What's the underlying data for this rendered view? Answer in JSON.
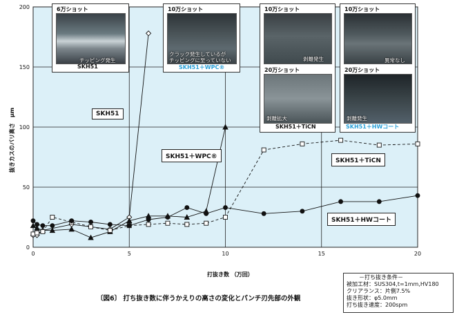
{
  "figure_caption": "〔図6〕 打ち抜き数に伴うかえりの高さの変化とパンチ刃先部の外観",
  "conditions": {
    "title": "－打ち抜き条件－",
    "lines": [
      "被加工材：SUS304,t=1mm,HV180",
      "クリアランス：片側7.5%",
      "抜き形状：φ5.0mm",
      "打ち抜き速度：200spm"
    ]
  },
  "colors": {
    "plot_bg": "#dcf0f8",
    "grid": "#222222",
    "accent_blue": "#2aa0d8"
  },
  "photos": [
    {
      "caption": "6万ショット",
      "note": "チッピング発生",
      "name": "SKH51",
      "name_color": "#111111"
    },
    {
      "caption": "10万ショット",
      "note": "クラック発生しているが\nチッピングに至っていない",
      "name": "SKH51＋WPC®",
      "name_color": "#2aa0d8"
    },
    {
      "caption": "10万ショット",
      "note": "剥離発生",
      "caption2": "20万ショット",
      "note2": "剥離拡大",
      "name": "SKH51＋TiCN",
      "name_color": "#111111"
    },
    {
      "caption": "10万ショット",
      "note": "異常なし",
      "caption2": "20万ショット",
      "note2": "剥離発生",
      "name": "SKH51＋HWコート",
      "name_color": "#2aa0d8"
    }
  ],
  "chart_data": {
    "type": "line",
    "title": "",
    "xlabel": "打抜き数 （万回）",
    "ylabel": "抜きカスのバリ高さ　μm",
    "xlim": [
      0,
      20
    ],
    "ylim": [
      0,
      200
    ],
    "xticks": [
      0,
      5,
      10,
      15,
      20
    ],
    "yticks": [
      0,
      50,
      100,
      150,
      200
    ],
    "grid": true,
    "series": [
      {
        "name": "SKH51",
        "marker": "diamond-open",
        "dash": "solid",
        "x": [
          0,
          0.2,
          0.5,
          2,
          4,
          5,
          6
        ],
        "y": [
          10,
          10,
          14,
          19,
          15,
          25,
          178
        ]
      },
      {
        "name": "SKH51＋WPC®",
        "marker": "triangle-filled",
        "dash": "solid",
        "x": [
          0,
          0.2,
          0.5,
          1,
          2,
          3,
          4,
          5,
          6,
          7,
          8,
          9,
          10
        ],
        "y": [
          18,
          16,
          14,
          14,
          15,
          8,
          13,
          22,
          26,
          26,
          25,
          30,
          100
        ]
      },
      {
        "name": "SKH51＋TiCN",
        "marker": "square-open",
        "dash": "dashed",
        "x": [
          0,
          0.2,
          0.5,
          1,
          2,
          3,
          4,
          5,
          6,
          7,
          8,
          9,
          10,
          12,
          14,
          16,
          18,
          20
        ],
        "y": [
          11,
          12,
          13,
          25,
          21,
          17,
          14,
          18,
          19,
          20,
          19,
          20,
          25,
          81,
          86,
          89,
          85,
          86
        ]
      },
      {
        "name": "SKH51＋HWコート",
        "marker": "circle-filled",
        "dash": "solid",
        "x": [
          0,
          0.2,
          0.5,
          1,
          2,
          3,
          4,
          5,
          6,
          7,
          8,
          9,
          10,
          12,
          14,
          16,
          18,
          20
        ],
        "y": [
          22,
          19,
          18,
          18,
          22,
          21,
          19,
          18,
          23,
          25,
          33,
          28,
          33,
          28,
          30,
          38,
          38,
          43
        ]
      }
    ],
    "series_labels": [
      "SKH51",
      "SKH51＋WPC®",
      "SKH51＋TiCN",
      "SKH51＋HWコート"
    ]
  }
}
